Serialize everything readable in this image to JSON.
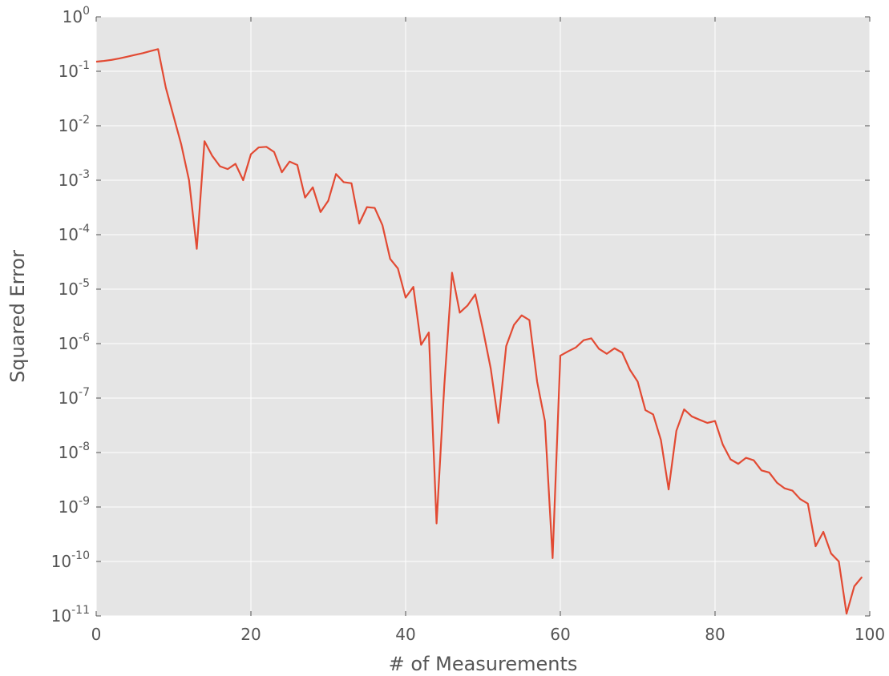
{
  "chart_data": {
    "type": "line",
    "title": "",
    "xlabel": "# of Measurements",
    "ylabel": "Squared Error",
    "xlim": [
      0,
      100
    ],
    "ylim": [
      1e-11,
      1
    ],
    "yscale": "log",
    "grid": true,
    "legend": "none",
    "colors": {
      "background": "#e5e5e5",
      "grid": "#ffffff",
      "line": "#e24a33",
      "text": "#555555"
    },
    "x_ticks": [
      "0",
      "20",
      "40",
      "60",
      "80",
      "100"
    ],
    "y_ticks": [
      {
        "base": "10",
        "exp": "0"
      },
      {
        "base": "10",
        "exp": "-1"
      },
      {
        "base": "10",
        "exp": "-2"
      },
      {
        "base": "10",
        "exp": "-3"
      },
      {
        "base": "10",
        "exp": "-4"
      },
      {
        "base": "10",
        "exp": "-5"
      },
      {
        "base": "10",
        "exp": "-6"
      },
      {
        "base": "10",
        "exp": "-7"
      },
      {
        "base": "10",
        "exp": "-8"
      },
      {
        "base": "10",
        "exp": "-9"
      },
      {
        "base": "10",
        "exp": "-10"
      },
      {
        "base": "10",
        "exp": "-11"
      }
    ],
    "series": [
      {
        "x": [
          0,
          1,
          2,
          3,
          4,
          5,
          6,
          7,
          8,
          9,
          10,
          11,
          12,
          13,
          14,
          15,
          16,
          17,
          18,
          19,
          20,
          21,
          22,
          23,
          24,
          25,
          26,
          27,
          28,
          29,
          30,
          31,
          32,
          33,
          34,
          35,
          36,
          37,
          38,
          39,
          40,
          41,
          42,
          43,
          44,
          45,
          46,
          47,
          48,
          49,
          50,
          51,
          52,
          53,
          54,
          55,
          56,
          57,
          58,
          59,
          60,
          61,
          62,
          63,
          64,
          65,
          66,
          67,
          68,
          69,
          70,
          71,
          72,
          73,
          74,
          75,
          76,
          77,
          78,
          79,
          80,
          81,
          82,
          83,
          84,
          85,
          86,
          87,
          88,
          89,
          90,
          91,
          92,
          93,
          94,
          95,
          96,
          97,
          98,
          99
        ],
        "y": [
          0.15,
          0.155,
          0.162,
          0.172,
          0.185,
          0.2,
          0.215,
          0.235,
          0.255,
          0.05,
          0.015,
          0.0045,
          0.001,
          5.5e-05,
          0.0052,
          0.0028,
          0.0018,
          0.0016,
          0.002,
          0.001,
          0.003,
          0.004,
          0.0041,
          0.0033,
          0.0014,
          0.0022,
          0.0019,
          0.00048,
          0.00074,
          0.00026,
          0.00042,
          0.0013,
          0.00092,
          0.00088,
          0.00016,
          0.00032,
          0.00031,
          0.00015,
          3.6e-05,
          2.4e-05,
          7e-06,
          1.1e-05,
          9.5e-07,
          1.6e-06,
          5e-10,
          1.7e-07,
          2e-05,
          3.7e-06,
          5e-06,
          8e-06,
          1.8e-06,
          3.5e-07,
          3.5e-08,
          9e-07,
          2.2e-06,
          3.3e-06,
          2.7e-06,
          2e-07,
          3.8e-08,
          1.15e-10,
          6e-07,
          7.2e-07,
          8.5e-07,
          1.15e-06,
          1.25e-06,
          8e-07,
          6.5e-07,
          8.2e-07,
          6.8e-07,
          3.3e-07,
          2e-07,
          6e-08,
          5e-08,
          1.7e-08,
          2.1e-09,
          2.5e-08,
          6.2e-08,
          4.6e-08,
          4e-08,
          3.5e-08,
          3.8e-08,
          1.4e-08,
          7.5e-09,
          6.2e-09,
          8e-09,
          7.2e-09,
          4.7e-09,
          4.3e-09,
          2.8e-09,
          2.2e-09,
          2e-09,
          1.4e-09,
          1.15e-09,
          1.9e-10,
          3.5e-10,
          1.4e-10,
          1e-10,
          1.1e-11,
          3.5e-11,
          5.2e-11
        ]
      }
    ]
  }
}
